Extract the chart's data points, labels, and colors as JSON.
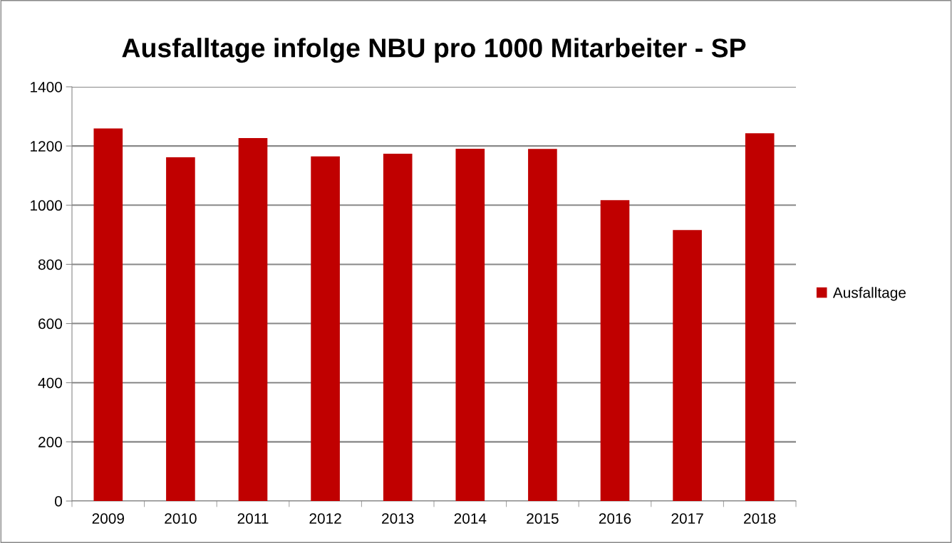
{
  "chart_data": {
    "type": "bar",
    "title": "Ausfalltage infolge NBU pro 1000 Mitarbeiter - SP",
    "categories": [
      "2009",
      "2010",
      "2011",
      "2012",
      "2013",
      "2014",
      "2015",
      "2016",
      "2017",
      "2018"
    ],
    "series": [
      {
        "name": "Ausfalltage",
        "color": "#c00000",
        "values": [
          1259,
          1162,
          1227,
          1165,
          1174,
          1191,
          1190,
          1017,
          916,
          1243
        ]
      }
    ],
    "ylim": [
      0,
      1400
    ],
    "yticks": [
      0,
      200,
      400,
      600,
      800,
      1000,
      1200,
      1400
    ],
    "grid": "y",
    "legend": "right"
  }
}
